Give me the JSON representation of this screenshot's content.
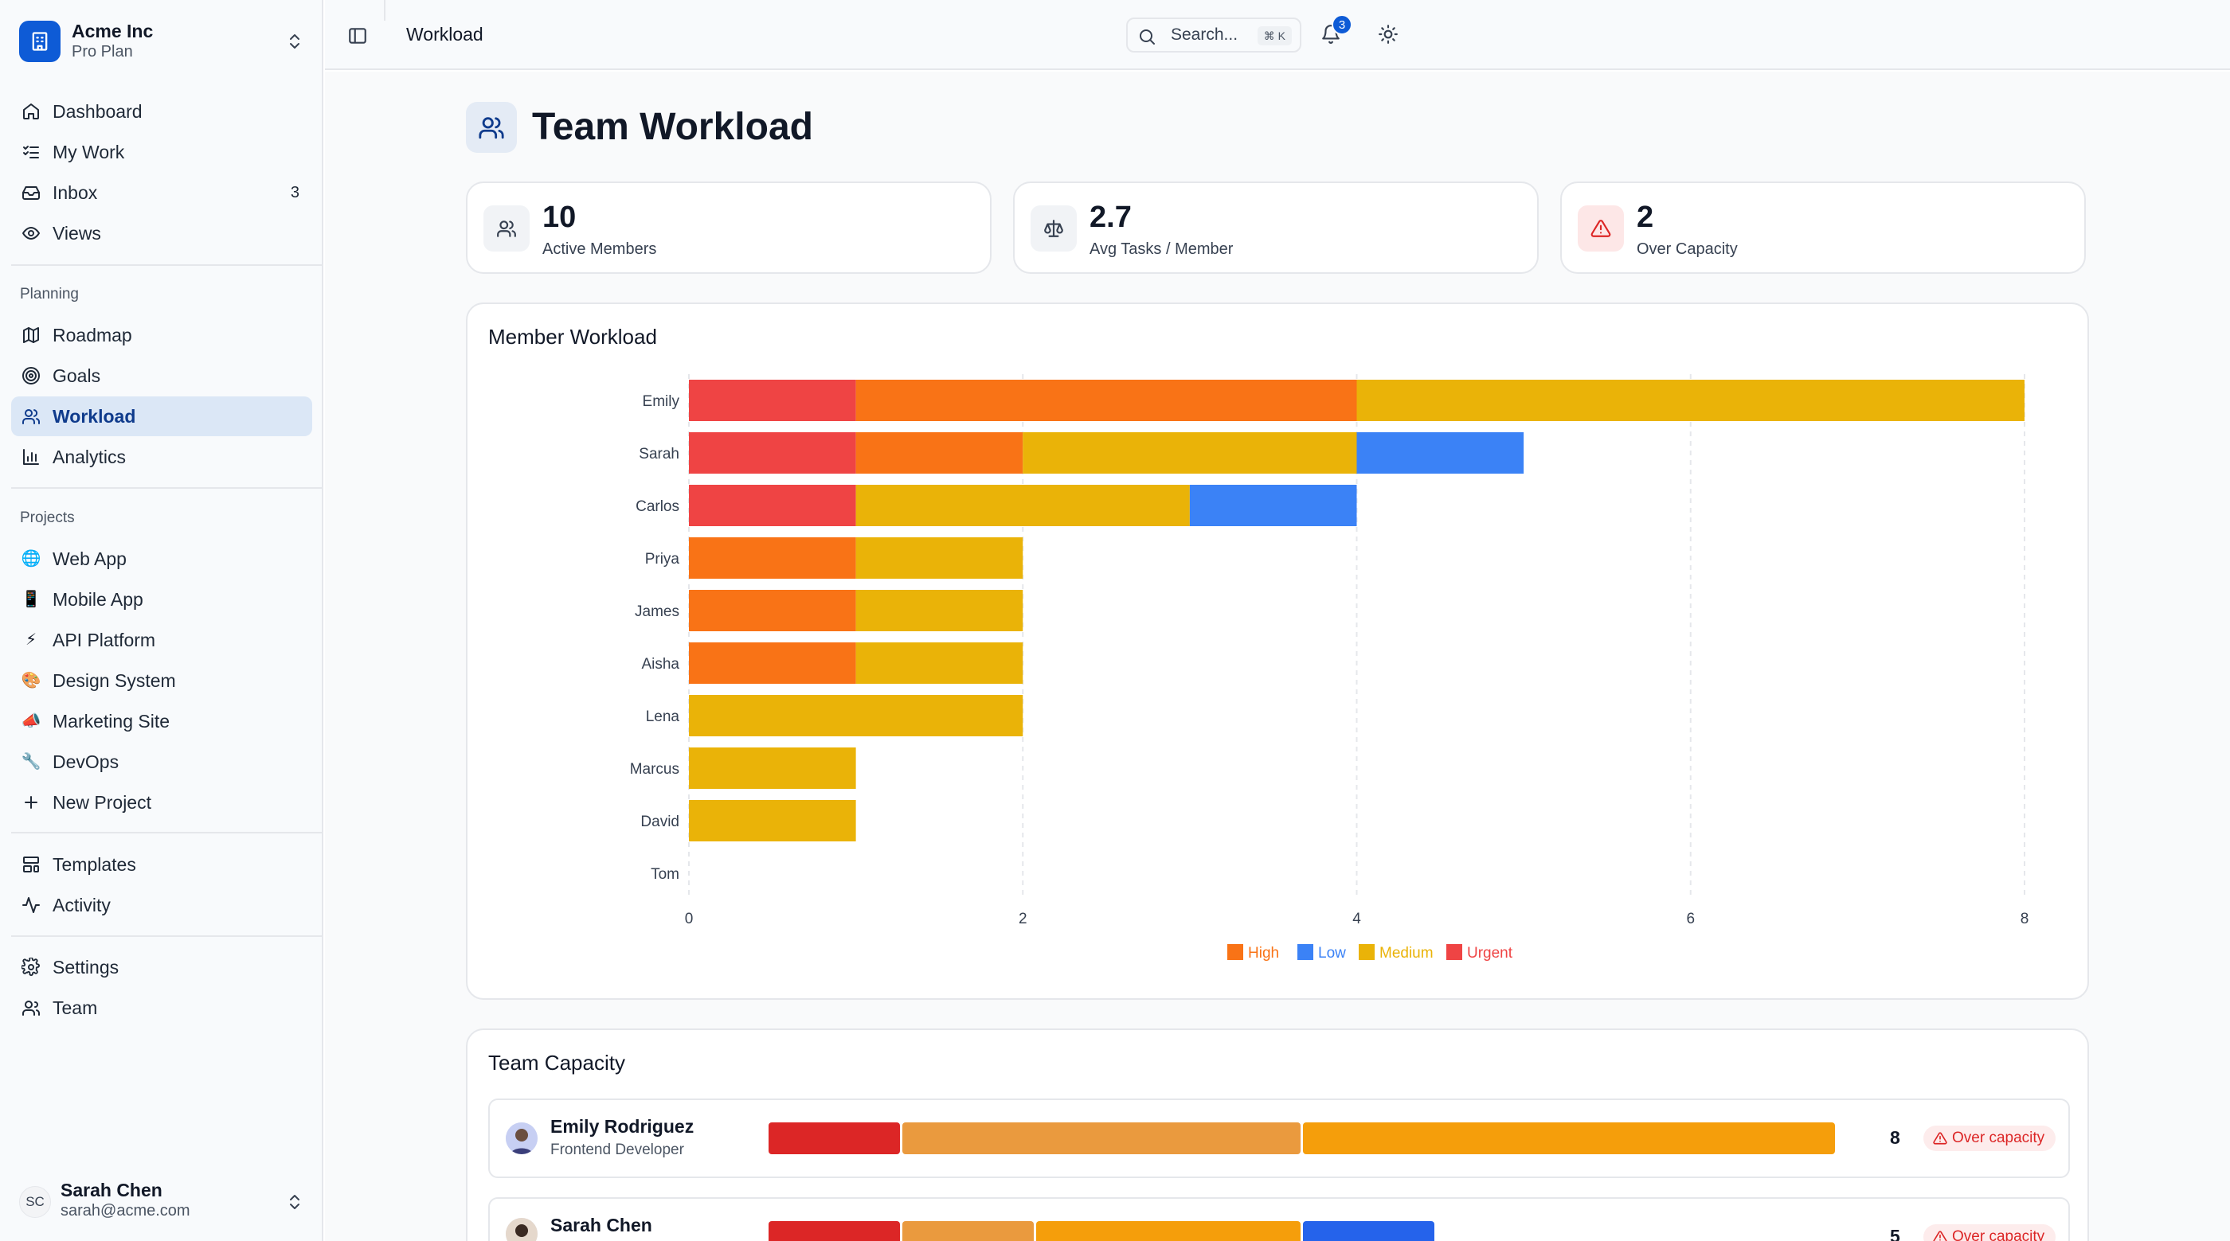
{
  "sidebar": {
    "brand": {
      "name": "Acme Inc",
      "plan": "Pro Plan"
    },
    "main_items": [
      {
        "label": "Dashboard",
        "icon": "home-icon"
      },
      {
        "label": "My Work",
        "icon": "list-checks-icon"
      },
      {
        "label": "Inbox",
        "icon": "inbox-icon",
        "count": "3"
      },
      {
        "label": "Views",
        "icon": "eye-icon"
      }
    ],
    "planning_label": "Planning",
    "planning_items": [
      {
        "label": "Roadmap",
        "icon": "map-icon"
      },
      {
        "label": "Goals",
        "icon": "target-icon"
      },
      {
        "label": "Workload",
        "icon": "users-icon",
        "active": true
      },
      {
        "label": "Analytics",
        "icon": "bar-chart-icon"
      }
    ],
    "projects_label": "Projects",
    "projects": [
      {
        "label": "Web App",
        "emoji": "🌐"
      },
      {
        "label": "Mobile App",
        "emoji": "📱"
      },
      {
        "label": "API Platform",
        "emoji": "⚡"
      },
      {
        "label": "Design System",
        "emoji": "🎨"
      },
      {
        "label": "Marketing Site",
        "emoji": "📣"
      },
      {
        "label": "DevOps",
        "emoji": "🔧"
      }
    ],
    "new_project": "New Project",
    "bottom_items": [
      {
        "label": "Templates",
        "icon": "layout-template-icon"
      },
      {
        "label": "Activity",
        "icon": "activity-icon"
      }
    ],
    "settings_items": [
      {
        "label": "Settings",
        "icon": "gear-icon"
      },
      {
        "label": "Team",
        "icon": "team-icon"
      }
    ],
    "user": {
      "initials": "SC",
      "name": "Sarah Chen",
      "email": "sarah@acme.com"
    }
  },
  "topbar": {
    "breadcrumb": "Workload",
    "search_placeholder": "Search...",
    "search_shortcut": "⌘ K",
    "notification_count": "3"
  },
  "page": {
    "title": "Team Workload",
    "stats": [
      {
        "value": "10",
        "label": "Active Members",
        "icon": "users-icon"
      },
      {
        "value": "2.7",
        "label": "Avg Tasks / Member",
        "icon": "scale-icon"
      },
      {
        "value": "2",
        "label": "Over Capacity",
        "icon": "alert-triangle-icon"
      }
    ]
  },
  "chart_data": {
    "type": "bar",
    "orientation": "horizontal",
    "stacked": true,
    "title": "Member Workload",
    "categories": [
      "Emily",
      "Sarah",
      "Carlos",
      "Priya",
      "James",
      "Aisha",
      "Lena",
      "Marcus",
      "David",
      "Tom"
    ],
    "series": [
      {
        "name": "High",
        "color": "#f97316",
        "values": [
          3,
          1,
          0,
          1,
          1,
          1,
          0,
          0,
          0,
          0
        ]
      },
      {
        "name": "Low",
        "color": "#3b82f6",
        "values": [
          0,
          1,
          1,
          0,
          0,
          0,
          0,
          0,
          0,
          0
        ]
      },
      {
        "name": "Medium",
        "color": "#eab308",
        "values": [
          4,
          2,
          2,
          1,
          1,
          1,
          2,
          1,
          1,
          0
        ]
      },
      {
        "name": "Urgent",
        "color": "#ef4444",
        "values": [
          1,
          1,
          1,
          0,
          0,
          0,
          0,
          0,
          0,
          0
        ]
      }
    ],
    "stack_order": [
      "Urgent",
      "High",
      "Medium",
      "Low"
    ],
    "xlim": [
      0,
      8
    ],
    "xticks": [
      "0",
      "2",
      "4",
      "6",
      "8"
    ],
    "grid": true,
    "legend_position": "bottom-center"
  },
  "capacity": {
    "title": "Team Capacity",
    "members": [
      {
        "name": "Emily Rodriguez",
        "role": "Frontend Developer",
        "count": "8",
        "status": "Over capacity",
        "segments": [
          {
            "color": "#dc2626",
            "value": 1
          },
          {
            "color": "#ea9a3e",
            "value": 3
          },
          {
            "color": "#f59e0b",
            "value": 4
          }
        ]
      },
      {
        "name": "Sarah Chen",
        "role": "",
        "count": "5",
        "status": "Over capacity",
        "segments": [
          {
            "color": "#dc2626",
            "value": 1
          },
          {
            "color": "#ea9a3e",
            "value": 1
          },
          {
            "color": "#f59e0b",
            "value": 2
          },
          {
            "color": "#2563eb",
            "value": 1
          }
        ]
      }
    ],
    "scale_max": 8
  }
}
